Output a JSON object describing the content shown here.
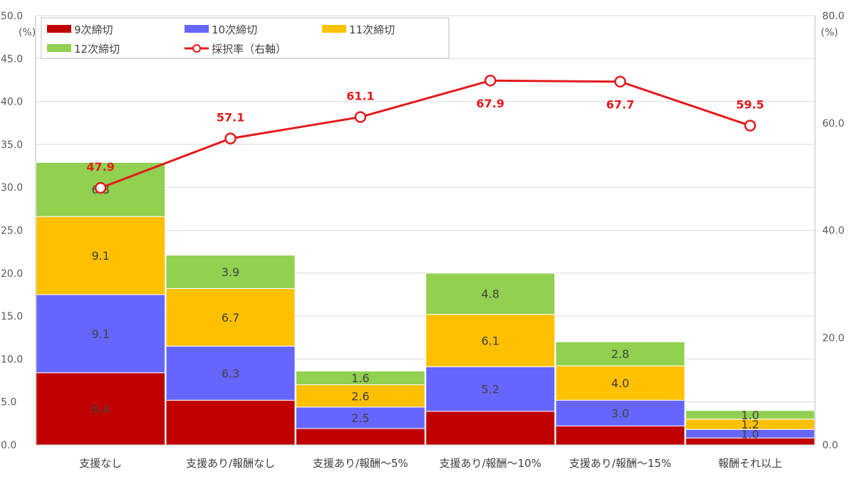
{
  "chart_data": {
    "type": "bar",
    "stacked": true,
    "combo_line": true,
    "categories": [
      "支援なし",
      "支援あり/報酬なし",
      "支援あり/報酬～5%",
      "支援あり/報酬～10%",
      "支援あり/報酬～15%",
      "報酬それ以上"
    ],
    "series": [
      {
        "name": "9次締切",
        "color": "#c00000",
        "values": [
          8.4,
          5.2,
          1.9,
          3.9,
          2.2,
          0.8
        ],
        "labels": [
          "8.4",
          "",
          "",
          "",
          "",
          ""
        ]
      },
      {
        "name": "10次締切",
        "color": "#6666ff",
        "values": [
          9.1,
          6.3,
          2.5,
          5.2,
          3.0,
          1.0
        ],
        "labels": [
          "9.1",
          "6.3",
          "2.5",
          "5.2",
          "3.0",
          "1.0"
        ]
      },
      {
        "name": "11次締切",
        "color": "#ffc000",
        "values": [
          9.1,
          6.7,
          2.6,
          6.1,
          4.0,
          1.2
        ],
        "labels": [
          "9.1",
          "6.7",
          "2.6",
          "6.1",
          "4.0",
          "1.2"
        ]
      },
      {
        "name": "12次締切",
        "color": "#92d050",
        "values": [
          6.3,
          3.9,
          1.6,
          4.8,
          2.8,
          1.0
        ],
        "labels": [
          "6.3",
          "3.9",
          "1.6",
          "4.8",
          "2.8",
          "1.0"
        ]
      }
    ],
    "line_series": {
      "name": "採択率（右軸）",
      "color": "#e31a1c",
      "values": [
        47.9,
        57.1,
        61.1,
        67.9,
        67.7,
        59.5
      ],
      "labels": [
        "47.9",
        "57.1",
        "61.1",
        "67.9",
        "67.7",
        "59.5"
      ]
    },
    "y_left": {
      "min": 0,
      "max": 50,
      "step": 5,
      "unit": "(%)",
      "ticks": [
        "0.0",
        "5.0",
        "10.0",
        "15.0",
        "20.0",
        "25.0",
        "30.0",
        "35.0",
        "40.0",
        "45.0",
        "50.0"
      ]
    },
    "y_right": {
      "min": 0,
      "max": 80,
      "step": 20,
      "unit": "(%)",
      "ticks": [
        "0.0",
        "20.0",
        "40.0",
        "60.0",
        "80.0"
      ]
    },
    "grid": true,
    "legend": "top-left"
  }
}
